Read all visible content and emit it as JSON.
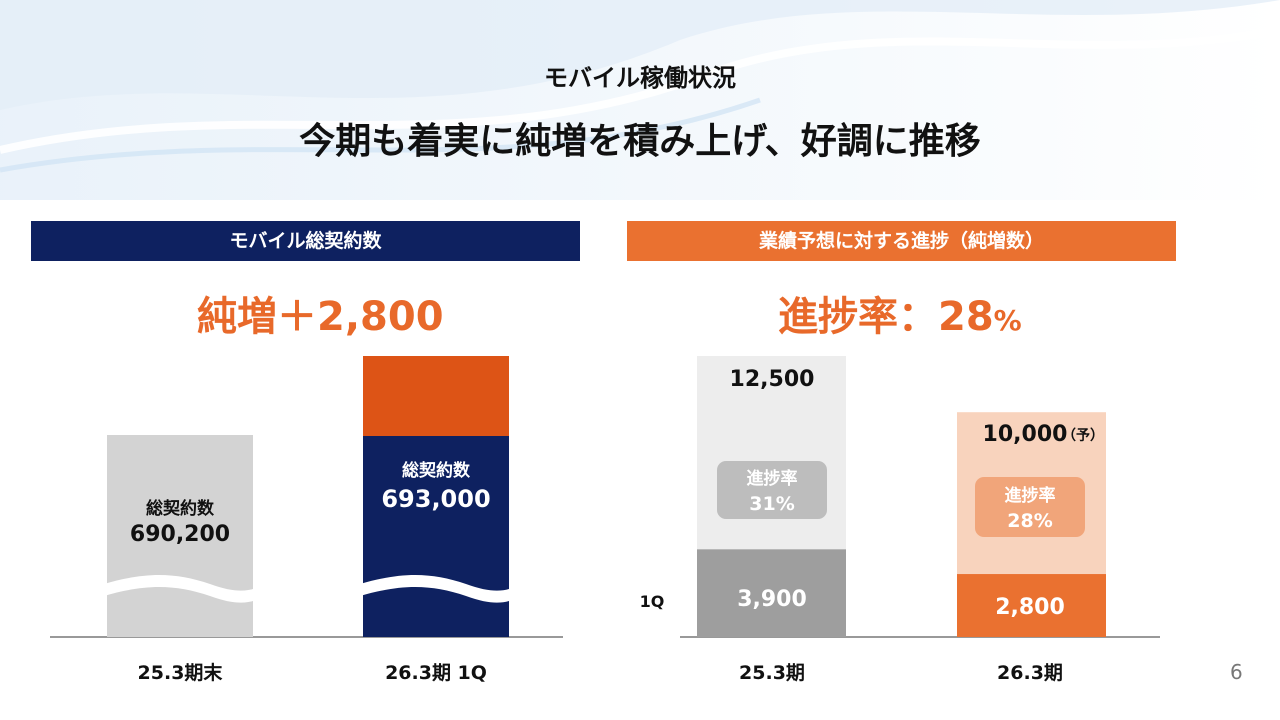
{
  "header": {
    "subtitle": "モバイル稼働状況",
    "headline": "今期も着実に純増を積み上げ、好調に推移"
  },
  "left_panel": {
    "title": "モバイル総契約数",
    "net_increase": "純増＋2,800"
  },
  "right_panel": {
    "title": "業績予想に対する進捗（純増数）",
    "progress_label": "進捗率：28",
    "progress_unit": "%"
  },
  "colors": {
    "navy": "#0e2160",
    "orange": "#ea7130",
    "dark_orange": "#dd5416",
    "gray": "#d3d3d3",
    "dark_gray": "#9e9e9e"
  },
  "chart_data": [
    {
      "type": "bar",
      "categories": [
        "25.3期末",
        "26.3期 1Q"
      ],
      "bar_labels": [
        "総契約数",
        "総契約数"
      ],
      "values": [
        690200,
        693000
      ],
      "value_labels": [
        "690,200",
        "693,000"
      ],
      "axis_break": true
    },
    {
      "type": "bar",
      "categories": [
        "25.3期",
        "26.3期"
      ],
      "series": [
        {
          "name": "1Q",
          "values": [
            3900,
            2800
          ],
          "value_labels": [
            "3,900",
            "2,800"
          ]
        }
      ],
      "totals": [
        12500,
        10000
      ],
      "total_labels": [
        "12,500",
        "10,000"
      ],
      "total_suffix": [
        "",
        "（予）"
      ],
      "progress_title": "進捗率",
      "progress_labels": [
        "31%",
        "28%"
      ],
      "ylim": [
        0,
        12500
      ]
    }
  ],
  "page_number": "6"
}
